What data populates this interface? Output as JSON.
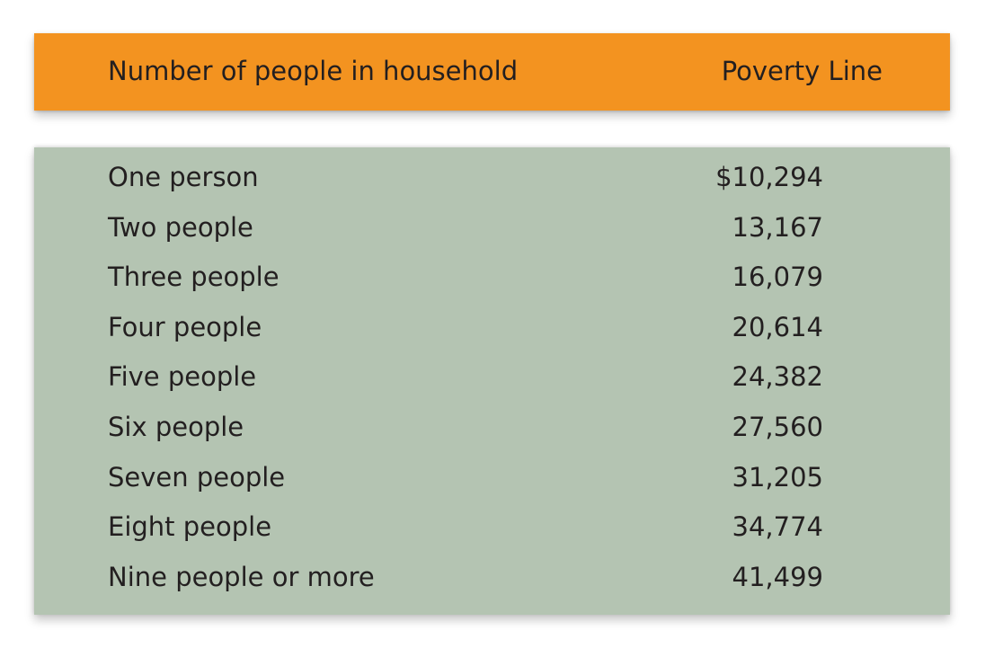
{
  "header": {
    "col_household": "Number of people in household",
    "col_poverty": "Poverty Line"
  },
  "rows": [
    {
      "household": "One person",
      "amount": "$10,294"
    },
    {
      "household": "Two people",
      "amount": "13,167"
    },
    {
      "household": "Three people",
      "amount": "16,079"
    },
    {
      "household": "Four people",
      "amount": "20,614"
    },
    {
      "household": "Five people",
      "amount": "24,382"
    },
    {
      "household": "Six people",
      "amount": "27,560"
    },
    {
      "household": "Seven people",
      "amount": "31,205"
    },
    {
      "household": "Eight people",
      "amount": "34,774"
    },
    {
      "household": "Nine people or more",
      "amount": "41,499"
    }
  ],
  "colors": {
    "header_bg": "#f39320",
    "body_bg": "#b4c4b2",
    "text": "#231f20"
  }
}
